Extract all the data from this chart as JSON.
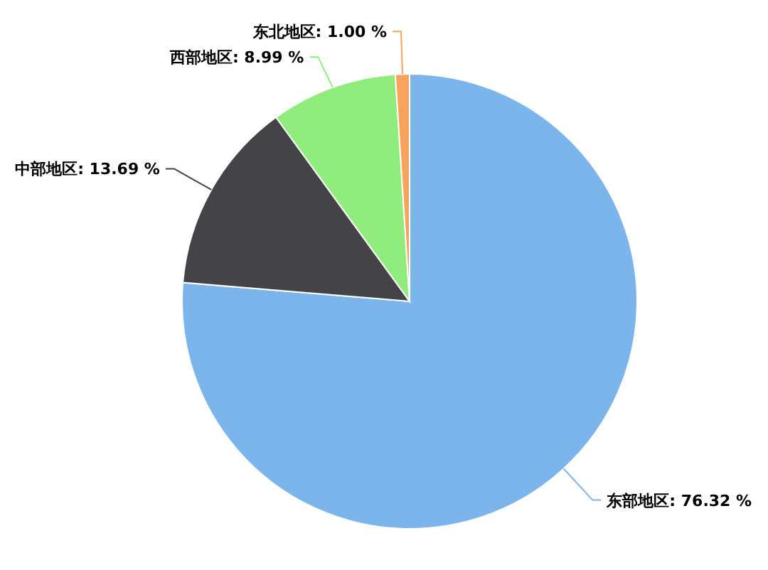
{
  "chart_data": {
    "type": "pie",
    "categories": [
      "东部地区",
      "中部地区",
      "西部地区",
      "东北地区"
    ],
    "values": [
      76.32,
      13.69,
      8.99,
      1.0
    ],
    "value_labels": [
      "76.32 %",
      "13.69 %",
      "8.99 %",
      "1.00 %"
    ],
    "colors": [
      "#7cb5ec",
      "#434348",
      "#90ed7d",
      "#f7a35c"
    ]
  }
}
